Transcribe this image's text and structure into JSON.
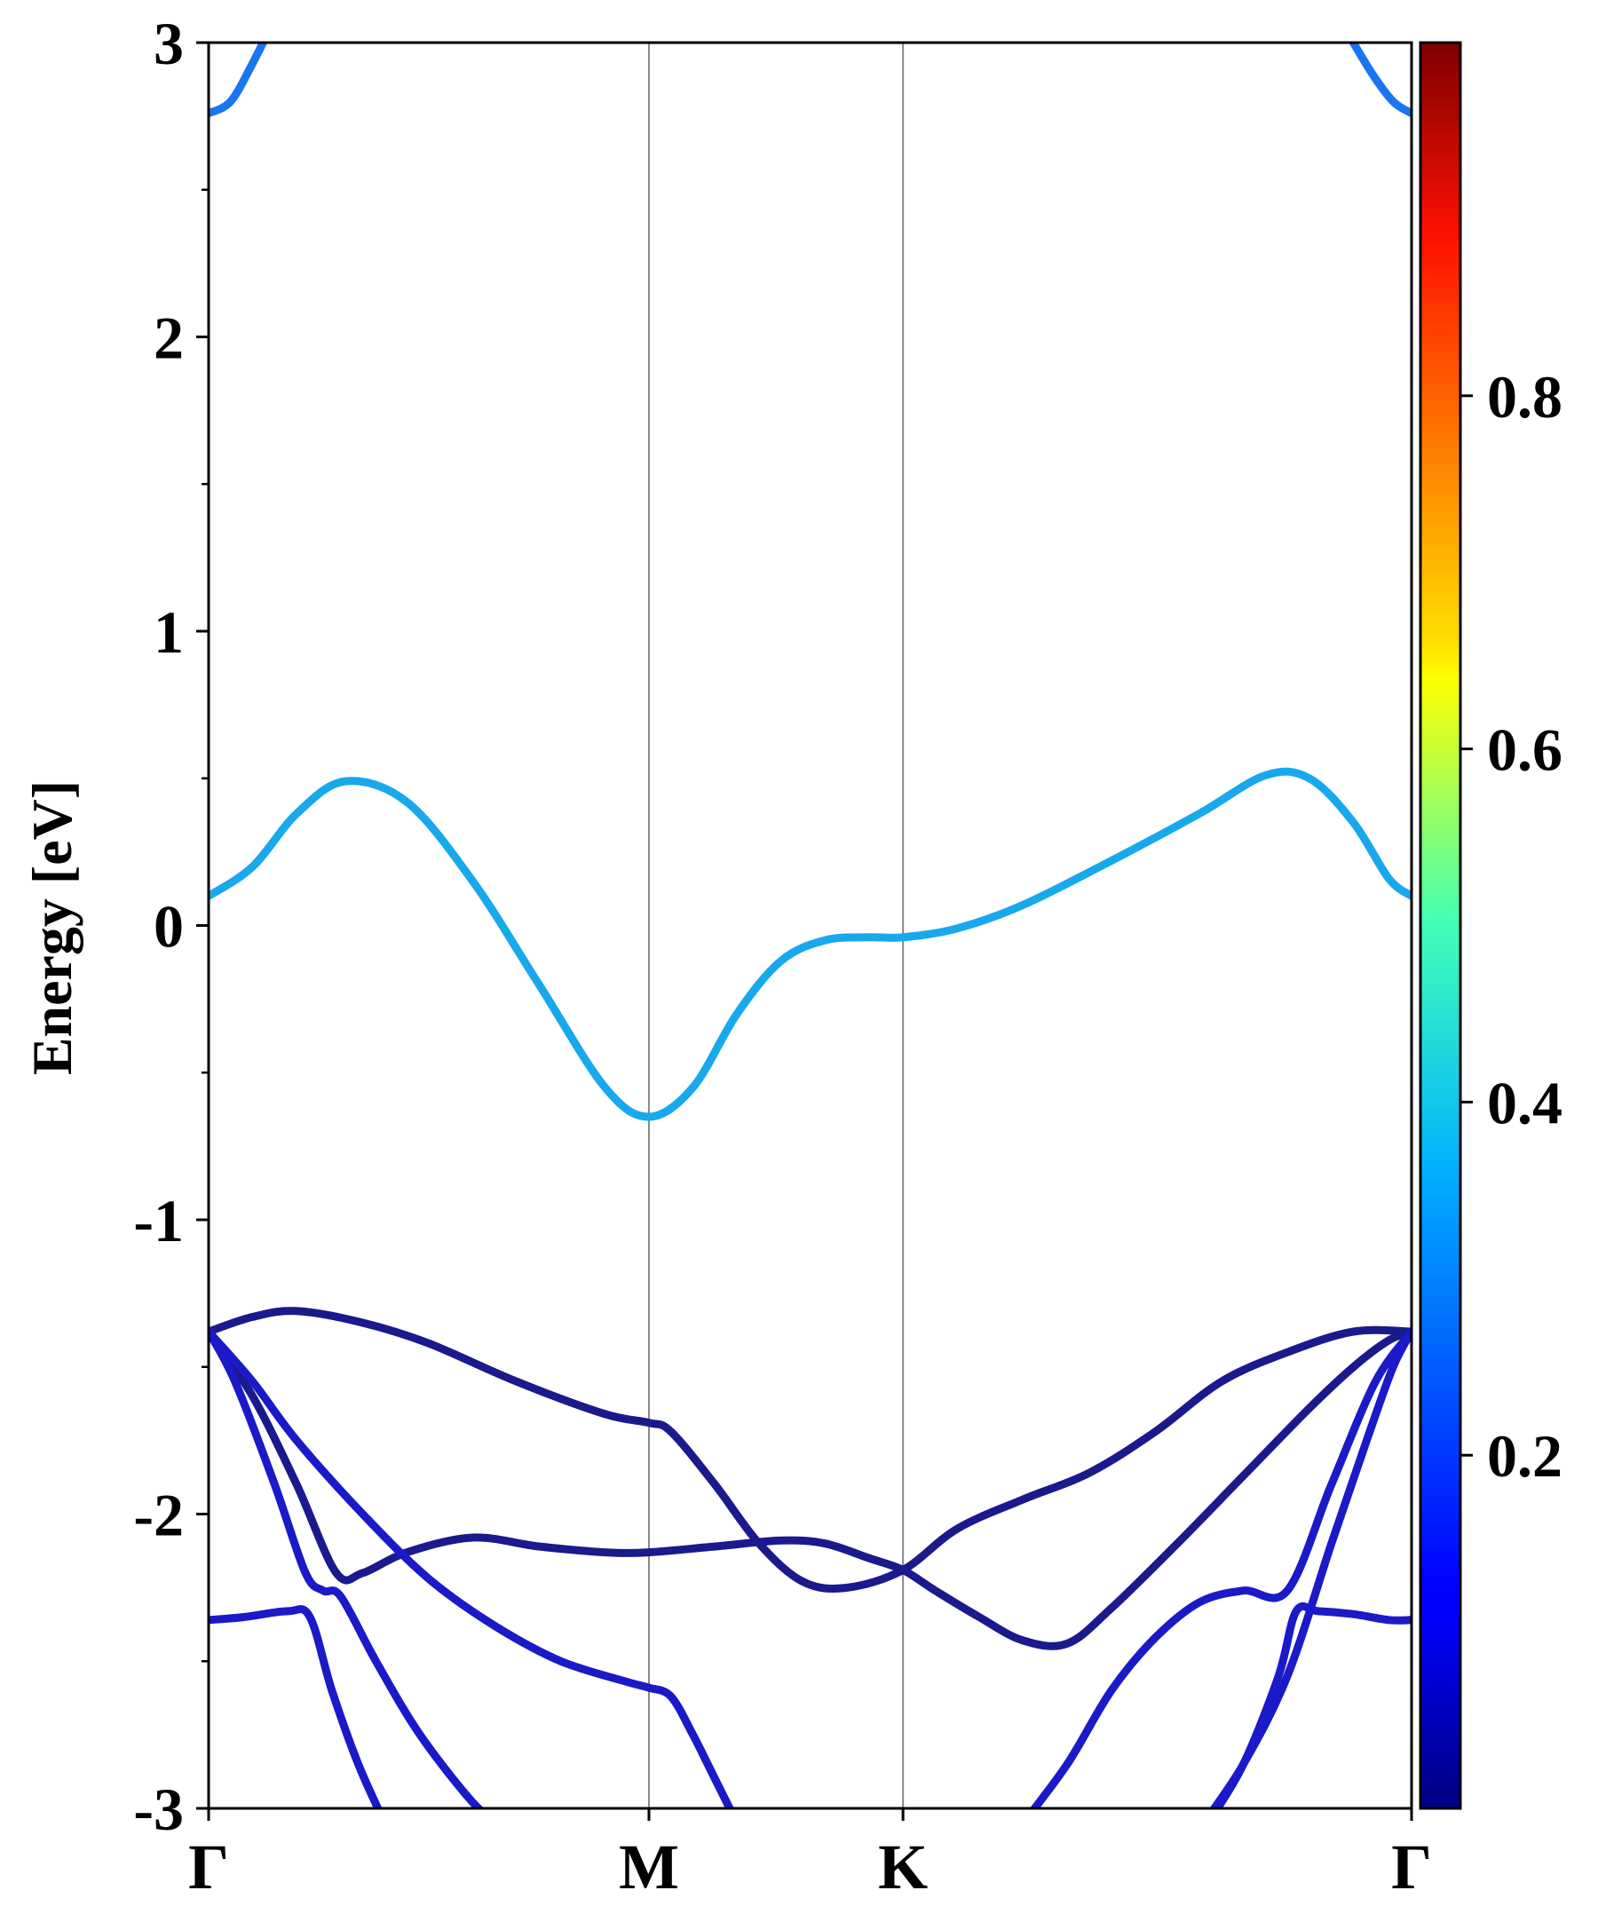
{
  "chart_data": {
    "type": "line",
    "title": "",
    "xlabel": "",
    "ylabel": "Energy [eV]",
    "ylim": [
      -3,
      3
    ],
    "xlim": [
      0,
      2.732
    ],
    "grid": false,
    "x_ticks": [
      {
        "label": "Γ",
        "x": 0
      },
      {
        "label": "M",
        "x": 1.0
      },
      {
        "label": "K",
        "x": 1.577
      },
      {
        "label": "Γ",
        "x": 2.732
      }
    ],
    "y_ticks": [
      {
        "label": "3",
        "y": 3
      },
      {
        "label": "2",
        "y": 2
      },
      {
        "label": "1",
        "y": 1
      },
      {
        "label": "0",
        "y": 0
      },
      {
        "label": "-1",
        "y": -1
      },
      {
        "label": "-2",
        "y": -2
      },
      {
        "label": "-3",
        "y": -3
      }
    ],
    "y_minor_ticks": [
      2.5,
      1.5,
      0.5,
      -0.5,
      -1.5,
      -2.5
    ],
    "colorbar": {
      "colormap": "jet",
      "range": [
        0,
        1
      ],
      "ticks": [
        {
          "label": "0.2",
          "value": 0.2
        },
        {
          "label": "0.4",
          "value": 0.4
        },
        {
          "label": "0.6",
          "value": 0.6
        },
        {
          "label": "0.8",
          "value": 0.8
        }
      ]
    },
    "colors": {
      "conduction_upper": "#1a75f0",
      "conduction": "#18a8ec",
      "valence_dark": "#1a1a8c",
      "valence_blue": "#1a1ac8",
      "symmetry_line": "#888888"
    },
    "series": [
      {
        "color_key": "conduction_upper",
        "weight": 0.25,
        "x": [
          0,
          0.05,
          0.1,
          0.14
        ],
        "y": [
          2.76,
          2.8,
          2.93,
          3.05
        ]
      },
      {
        "color_key": "conduction_upper",
        "weight": 0.25,
        "x": [
          2.58,
          2.64,
          2.69,
          2.732
        ],
        "y": [
          3.05,
          2.9,
          2.8,
          2.76
        ]
      },
      {
        "color_key": "conduction",
        "weight": 0.3,
        "x": [
          0,
          0.1,
          0.2,
          0.31,
          0.45,
          0.6,
          0.75,
          0.9,
          1.0,
          1.1,
          1.2,
          1.3,
          1.4,
          1.5,
          1.577,
          1.7,
          1.85,
          2.05,
          2.25,
          2.4,
          2.5,
          2.6,
          2.68,
          2.732
        ],
        "y": [
          0.1,
          0.2,
          0.38,
          0.49,
          0.42,
          0.15,
          -0.2,
          -0.55,
          -0.65,
          -0.55,
          -0.3,
          -0.12,
          -0.05,
          -0.04,
          -0.04,
          -0.01,
          0.07,
          0.22,
          0.38,
          0.51,
          0.5,
          0.35,
          0.16,
          0.1
        ]
      },
      {
        "color_key": "valence_dark",
        "weight": 0.05,
        "x": [
          0,
          0.1,
          0.2,
          0.35,
          0.5,
          0.7,
          0.9,
          1.0,
          1.05,
          1.15,
          1.25,
          1.35,
          1.45,
          1.577,
          1.7,
          1.85,
          2.0,
          2.15,
          2.3,
          2.45,
          2.6,
          2.732
        ],
        "y": [
          -1.38,
          -1.33,
          -1.31,
          -1.35,
          -1.42,
          -1.55,
          -1.66,
          -1.69,
          -1.72,
          -1.9,
          -2.1,
          -2.23,
          -2.25,
          -2.19,
          -2.05,
          -1.95,
          -1.86,
          -1.72,
          -1.55,
          -1.45,
          -1.38,
          -1.38
        ]
      },
      {
        "color_key": "valence_dark",
        "weight": 0.05,
        "x": [
          0,
          0.1,
          0.2,
          0.29,
          0.35,
          0.45,
          0.6,
          0.75,
          0.9,
          1.0,
          1.15,
          1.3,
          1.4,
          1.5,
          1.577,
          1.65,
          1.75,
          1.85,
          1.95,
          2.05,
          2.2,
          2.35,
          2.5,
          2.6,
          2.68,
          2.732
        ],
        "y": [
          -1.38,
          -1.6,
          -1.9,
          -2.2,
          -2.2,
          -2.13,
          -2.08,
          -2.11,
          -2.13,
          -2.13,
          -2.11,
          -2.09,
          -2.1,
          -2.15,
          -2.19,
          -2.26,
          -2.35,
          -2.43,
          -2.44,
          -2.32,
          -2.1,
          -1.87,
          -1.64,
          -1.5,
          -1.41,
          -1.38
        ]
      },
      {
        "color_key": "valence_blue",
        "weight": 0.1,
        "x": [
          0,
          0.1,
          0.2,
          0.35,
          0.5,
          0.65,
          0.8,
          0.95,
          1.0,
          1.05,
          1.1,
          1.15,
          1.2
        ],
        "y": [
          -1.38,
          -1.55,
          -1.75,
          -2.0,
          -2.22,
          -2.38,
          -2.5,
          -2.57,
          -2.59,
          -2.62,
          -2.75,
          -2.9,
          -3.05
        ]
      },
      {
        "color_key": "valence_blue",
        "weight": 0.1,
        "x": [
          1.85,
          1.95,
          2.05,
          2.15,
          2.25,
          2.35,
          2.45,
          2.55,
          2.65,
          2.732
        ],
        "y": [
          -3.05,
          -2.85,
          -2.6,
          -2.42,
          -2.3,
          -2.26,
          -2.26,
          -1.9,
          -1.55,
          -1.38
        ]
      },
      {
        "color_key": "valence_blue",
        "weight": 0.1,
        "x": [
          0,
          0.06,
          0.15,
          0.22,
          0.26,
          0.3,
          0.38,
          0.48,
          0.6,
          0.66
        ],
        "y": [
          -1.38,
          -1.55,
          -1.9,
          -2.2,
          -2.26,
          -2.28,
          -2.5,
          -2.75,
          -2.98,
          -3.05
        ]
      },
      {
        "color_key": "valence_blue",
        "weight": 0.1,
        "x": [
          0,
          0.08,
          0.18,
          0.23,
          0.28,
          0.34,
          0.4
        ],
        "y": [
          -2.36,
          -2.35,
          -2.33,
          -2.35,
          -2.6,
          -2.85,
          -3.05
        ]
      },
      {
        "color_key": "valence_blue",
        "weight": 0.1,
        "x": [
          2.27,
          2.35,
          2.43,
          2.47,
          2.52,
          2.6,
          2.68,
          2.732
        ],
        "y": [
          -3.05,
          -2.85,
          -2.55,
          -2.33,
          -2.33,
          -2.34,
          -2.36,
          -2.36
        ]
      },
      {
        "color_key": "valence_blue",
        "weight": 0.1,
        "x": [
          2.26,
          2.35,
          2.45,
          2.55,
          2.63,
          2.69,
          2.732
        ],
        "y": [
          -3.05,
          -2.85,
          -2.55,
          -2.1,
          -1.75,
          -1.5,
          -1.38
        ]
      }
    ]
  }
}
